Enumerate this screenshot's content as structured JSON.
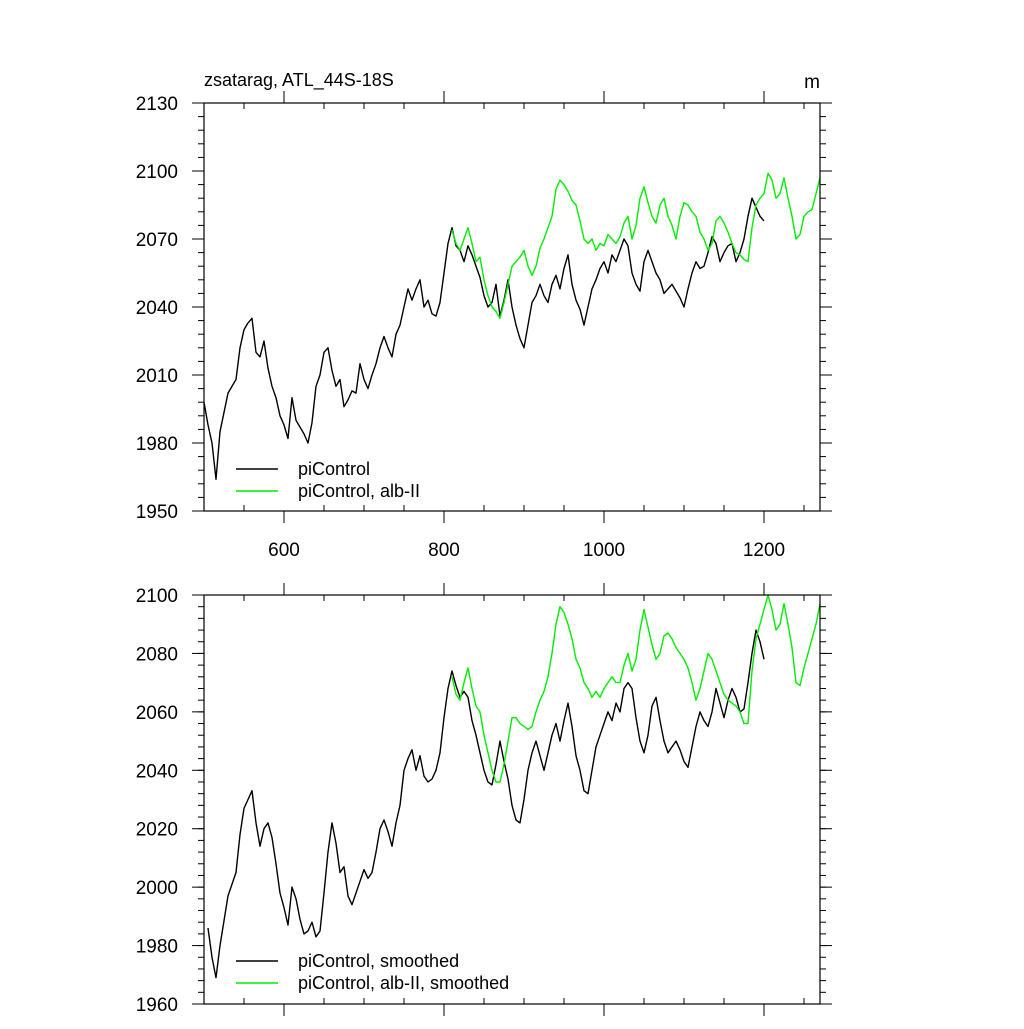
{
  "chart_data": [
    {
      "type": "line",
      "title": "zsatarag, ATL_44S-18S",
      "unit_label": "m",
      "xlim": [
        500,
        1270
      ],
      "ylim": [
        1950,
        2130
      ],
      "x_ticks": [
        600,
        800,
        1000,
        1200
      ],
      "x_tick_labels": [
        "600",
        "800",
        "1000",
        "1200"
      ],
      "y_ticks": [
        1950,
        1980,
        2010,
        2040,
        2070,
        2100,
        2130
      ],
      "y_tick_labels": [
        "1950",
        "1980",
        "2010",
        "2040",
        "2070",
        "2100",
        "2130"
      ],
      "legend_position": "bottom-left",
      "colors": {
        "piControl": "#000000",
        "alb-II": "#00ee00"
      },
      "series": [
        {
          "name": "piControl",
          "color": "#000000",
          "x": [
            500,
            505,
            510,
            515,
            520,
            530,
            540,
            545,
            550,
            555,
            560,
            565,
            570,
            575,
            580,
            585,
            590,
            595,
            600,
            605,
            610,
            615,
            620,
            625,
            630,
            635,
            640,
            645,
            650,
            655,
            660,
            665,
            670,
            675,
            680,
            685,
            690,
            695,
            700,
            705,
            710,
            715,
            720,
            725,
            730,
            735,
            740,
            745,
            750,
            755,
            760,
            765,
            770,
            775,
            780,
            785,
            790,
            795,
            800,
            805,
            810,
            815,
            820,
            825,
            830,
            835,
            840,
            845,
            850,
            855,
            860,
            865,
            870,
            875,
            880,
            885,
            890,
            895,
            900,
            905,
            910,
            915,
            920,
            925,
            930,
            935,
            940,
            945,
            950,
            955,
            960,
            965,
            970,
            975,
            980,
            985,
            990,
            995,
            1000,
            1005,
            1010,
            1015,
            1020,
            1025,
            1030,
            1035,
            1040,
            1045,
            1050,
            1055,
            1060,
            1065,
            1070,
            1075,
            1080,
            1085,
            1090,
            1095,
            1100,
            1105,
            1110,
            1115,
            1120,
            1125,
            1130,
            1135,
            1140,
            1145,
            1150,
            1155,
            1160,
            1165,
            1170,
            1175,
            1180,
            1185,
            1190,
            1195,
            1200
          ],
          "values": [
            1998,
            1988,
            1980,
            1964,
            1985,
            2002,
            2008,
            2022,
            2030,
            2033,
            2035,
            2020,
            2018,
            2025,
            2013,
            2005,
            2000,
            1992,
            1988,
            1982,
            2000,
            1990,
            1987,
            1984,
            1980,
            1989,
            2005,
            2010,
            2020,
            2022,
            2012,
            2005,
            2008,
            1996,
            1999,
            2003,
            2002,
            2015,
            2008,
            2004,
            2010,
            2015,
            2022,
            2027,
            2022,
            2018,
            2028,
            2032,
            2040,
            2048,
            2043,
            2048,
            2052,
            2040,
            2043,
            2037,
            2036,
            2042,
            2055,
            2068,
            2075,
            2067,
            2065,
            2060,
            2067,
            2063,
            2058,
            2053,
            2045,
            2040,
            2042,
            2050,
            2036,
            2043,
            2052,
            2040,
            2032,
            2026,
            2022,
            2032,
            2042,
            2045,
            2050,
            2045,
            2042,
            2050,
            2054,
            2048,
            2057,
            2063,
            2050,
            2043,
            2039,
            2032,
            2040,
            2048,
            2052,
            2057,
            2060,
            2055,
            2063,
            2060,
            2065,
            2070,
            2067,
            2055,
            2050,
            2047,
            2060,
            2065,
            2060,
            2055,
            2052,
            2046,
            2048,
            2050,
            2047,
            2044,
            2040,
            2048,
            2055,
            2060,
            2057,
            2058,
            2064,
            2071,
            2068,
            2060,
            2064,
            2067,
            2068,
            2060,
            2064,
            2070,
            2080,
            2088,
            2084,
            2080,
            2078
          ]
        },
        {
          "name": "piControl, alb-II",
          "color": "#00ee00",
          "x": [
            810,
            815,
            820,
            825,
            830,
            835,
            840,
            845,
            850,
            855,
            860,
            865,
            870,
            875,
            880,
            885,
            890,
            895,
            900,
            905,
            910,
            915,
            920,
            925,
            930,
            935,
            940,
            945,
            950,
            955,
            960,
            965,
            970,
            975,
            980,
            985,
            990,
            995,
            1000,
            1005,
            1010,
            1015,
            1020,
            1025,
            1030,
            1035,
            1040,
            1045,
            1050,
            1055,
            1060,
            1065,
            1070,
            1075,
            1080,
            1085,
            1090,
            1095,
            1100,
            1105,
            1110,
            1115,
            1120,
            1125,
            1130,
            1135,
            1140,
            1145,
            1150,
            1155,
            1160,
            1165,
            1170,
            1175,
            1180,
            1185,
            1190,
            1195,
            1200,
            1205,
            1210,
            1215,
            1220,
            1225,
            1230,
            1235,
            1240,
            1245,
            1250,
            1255,
            1260,
            1265,
            1270
          ],
          "values": [
            2074,
            2068,
            2065,
            2070,
            2075,
            2068,
            2060,
            2062,
            2052,
            2045,
            2040,
            2038,
            2035,
            2042,
            2050,
            2058,
            2060,
            2062,
            2065,
            2058,
            2054,
            2058,
            2066,
            2070,
            2075,
            2080,
            2092,
            2096,
            2094,
            2091,
            2087,
            2085,
            2078,
            2070,
            2068,
            2070,
            2065,
            2068,
            2067,
            2072,
            2070,
            2068,
            2071,
            2077,
            2080,
            2070,
            2076,
            2088,
            2093,
            2086,
            2080,
            2077,
            2085,
            2088,
            2080,
            2076,
            2070,
            2080,
            2086,
            2085,
            2082,
            2080,
            2073,
            2070,
            2065,
            2068,
            2078,
            2080,
            2077,
            2073,
            2068,
            2064,
            2063,
            2061,
            2060,
            2075,
            2085,
            2088,
            2090,
            2099,
            2096,
            2088,
            2090,
            2097,
            2088,
            2080,
            2070,
            2072,
            2080,
            2082,
            2083,
            2090,
            2097
          ]
        }
      ],
      "legend": [
        {
          "label": "piControl",
          "color": "#000000"
        },
        {
          "label": "piControl, alb-II",
          "color": "#00ee00"
        }
      ]
    },
    {
      "type": "line",
      "title": "",
      "xlim": [
        500,
        1270
      ],
      "ylim": [
        1960,
        2100
      ],
      "x_ticks": [
        600,
        800,
        1000,
        1200
      ],
      "x_tick_labels": [],
      "y_ticks": [
        1960,
        1980,
        2000,
        2020,
        2040,
        2060,
        2080,
        2100
      ],
      "y_tick_labels": [
        "1960",
        "1980",
        "2000",
        "2020",
        "2040",
        "2060",
        "2080",
        "2100"
      ],
      "legend_position": "bottom-left",
      "series": [
        {
          "name": "piControl, smoothed",
          "color": "#000000",
          "x": [
            505,
            510,
            515,
            520,
            530,
            540,
            545,
            550,
            555,
            560,
            565,
            570,
            575,
            580,
            585,
            590,
            595,
            600,
            605,
            610,
            615,
            620,
            625,
            630,
            635,
            640,
            645,
            650,
            655,
            660,
            665,
            670,
            675,
            680,
            685,
            690,
            695,
            700,
            705,
            710,
            715,
            720,
            725,
            730,
            735,
            740,
            745,
            750,
            755,
            760,
            765,
            770,
            775,
            780,
            785,
            790,
            795,
            800,
            805,
            810,
            815,
            820,
            825,
            830,
            835,
            840,
            845,
            850,
            855,
            860,
            865,
            870,
            875,
            880,
            885,
            890,
            895,
            900,
            905,
            910,
            915,
            920,
            925,
            930,
            935,
            940,
            945,
            950,
            955,
            960,
            965,
            970,
            975,
            980,
            985,
            990,
            995,
            1000,
            1005,
            1010,
            1015,
            1020,
            1025,
            1030,
            1035,
            1040,
            1045,
            1050,
            1055,
            1060,
            1065,
            1070,
            1075,
            1080,
            1085,
            1090,
            1095,
            1100,
            1105,
            1110,
            1115,
            1120,
            1125,
            1130,
            1135,
            1140,
            1145,
            1150,
            1155,
            1160,
            1165,
            1170,
            1175,
            1180,
            1185,
            1190,
            1195,
            1200
          ],
          "values": [
            1986,
            1976,
            1969,
            1980,
            1997,
            2005,
            2018,
            2027,
            2030,
            2033,
            2022,
            2014,
            2020,
            2022,
            2017,
            2008,
            1998,
            1993,
            1987,
            2000,
            1996,
            1989,
            1984,
            1985,
            1988,
            1983,
            1985,
            1998,
            2012,
            2022,
            2015,
            2005,
            2007,
            1997,
            1994,
            1998,
            2002,
            2006,
            2003,
            2005,
            2012,
            2020,
            2023,
            2019,
            2014,
            2022,
            2028,
            2040,
            2044,
            2047,
            2040,
            2045,
            2038,
            2036,
            2037,
            2040,
            2046,
            2058,
            2068,
            2074,
            2069,
            2065,
            2067,
            2065,
            2057,
            2052,
            2046,
            2040,
            2036,
            2035,
            2042,
            2050,
            2043,
            2037,
            2028,
            2023,
            2022,
            2030,
            2040,
            2046,
            2050,
            2045,
            2040,
            2046,
            2052,
            2056,
            2050,
            2057,
            2063,
            2055,
            2045,
            2040,
            2033,
            2032,
            2040,
            2048,
            2052,
            2056,
            2060,
            2057,
            2063,
            2060,
            2068,
            2070,
            2068,
            2058,
            2050,
            2046,
            2052,
            2062,
            2065,
            2057,
            2050,
            2046,
            2048,
            2050,
            2047,
            2043,
            2041,
            2048,
            2055,
            2060,
            2057,
            2055,
            2060,
            2068,
            2063,
            2058,
            2064,
            2068,
            2065,
            2060,
            2061,
            2070,
            2080,
            2088,
            2084,
            2078
          ]
        },
        {
          "name": "piControl, alb-II, smoothed",
          "color": "#00ee00",
          "x": [
            810,
            815,
            820,
            825,
            830,
            835,
            840,
            845,
            850,
            855,
            860,
            865,
            870,
            875,
            880,
            885,
            890,
            895,
            900,
            905,
            910,
            915,
            920,
            925,
            930,
            935,
            940,
            945,
            950,
            955,
            960,
            965,
            970,
            975,
            980,
            985,
            990,
            995,
            1000,
            1005,
            1010,
            1015,
            1020,
            1025,
            1030,
            1035,
            1040,
            1045,
            1050,
            1055,
            1060,
            1065,
            1070,
            1075,
            1080,
            1085,
            1090,
            1095,
            1100,
            1105,
            1110,
            1115,
            1120,
            1125,
            1130,
            1135,
            1140,
            1145,
            1150,
            1155,
            1160,
            1165,
            1170,
            1175,
            1180,
            1185,
            1190,
            1195,
            1200,
            1205,
            1210,
            1215,
            1220,
            1225,
            1230,
            1235,
            1240,
            1245,
            1250,
            1255,
            1260,
            1265,
            1270
          ],
          "values": [
            2072,
            2066,
            2064,
            2070,
            2075,
            2068,
            2062,
            2060,
            2052,
            2046,
            2040,
            2036,
            2036,
            2042,
            2050,
            2058,
            2058,
            2056,
            2055,
            2054,
            2055,
            2060,
            2064,
            2067,
            2072,
            2080,
            2090,
            2096,
            2094,
            2090,
            2085,
            2078,
            2075,
            2070,
            2068,
            2065,
            2067,
            2065,
            2068,
            2070,
            2072,
            2070,
            2070,
            2076,
            2080,
            2074,
            2078,
            2088,
            2095,
            2089,
            2083,
            2078,
            2080,
            2086,
            2087,
            2085,
            2082,
            2080,
            2078,
            2075,
            2070,
            2064,
            2068,
            2074,
            2080,
            2078,
            2074,
            2070,
            2066,
            2064,
            2063,
            2062,
            2060,
            2056,
            2056,
            2074,
            2085,
            2090,
            2095,
            2100,
            2095,
            2088,
            2090,
            2097,
            2090,
            2082,
            2070,
            2069,
            2075,
            2080,
            2085,
            2090,
            2097
          ]
        }
      ],
      "legend": [
        {
          "label": "piControl, smoothed",
          "color": "#000000"
        },
        {
          "label": "piControl, alb-II, smoothed",
          "color": "#00ee00"
        }
      ]
    }
  ]
}
